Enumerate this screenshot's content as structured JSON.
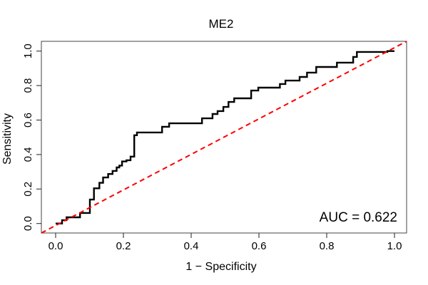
{
  "figure": {
    "background": "#ffffff"
  },
  "chart_data": {
    "type": "line",
    "subtype": "roc-step-curve",
    "title": "ME2",
    "xlabel": "1 − Specificity",
    "ylabel": "Sensitivity",
    "annotation": "AUC = 0.622",
    "auc_value": 0.622,
    "xlim": [
      0.0,
      1.0
    ],
    "ylim": [
      0.0,
      1.0
    ],
    "grid": false,
    "legend": "none",
    "x_ticks": [
      0.0,
      0.2,
      0.4,
      0.6,
      0.8,
      1.0
    ],
    "x_tick_labels": [
      "0.0",
      "0.2",
      "0.4",
      "0.6",
      "0.8",
      "1.0"
    ],
    "y_ticks": [
      0.0,
      0.2,
      0.4,
      0.6,
      0.8,
      1.0
    ],
    "y_tick_labels": [
      "0.0",
      "0.2",
      "0.4",
      "0.6",
      "0.8",
      "1.0"
    ],
    "colors": {
      "roc_curve": "#000000",
      "diagonal": "#ff0000",
      "box": "#555555",
      "tick": "#333333",
      "text": "#000000"
    },
    "series": [
      {
        "name": "ROC curve",
        "style": "solid-step",
        "color": "#000000",
        "points": [
          [
            0.0,
            0.0
          ],
          [
            0.019,
            0.0
          ],
          [
            0.019,
            0.019
          ],
          [
            0.032,
            0.019
          ],
          [
            0.032,
            0.036
          ],
          [
            0.072,
            0.036
          ],
          [
            0.072,
            0.061
          ],
          [
            0.101,
            0.061
          ],
          [
            0.101,
            0.139
          ],
          [
            0.113,
            0.139
          ],
          [
            0.113,
            0.204
          ],
          [
            0.129,
            0.204
          ],
          [
            0.129,
            0.236
          ],
          [
            0.14,
            0.236
          ],
          [
            0.14,
            0.267
          ],
          [
            0.155,
            0.267
          ],
          [
            0.155,
            0.287
          ],
          [
            0.168,
            0.287
          ],
          [
            0.168,
            0.305
          ],
          [
            0.18,
            0.305
          ],
          [
            0.18,
            0.325
          ],
          [
            0.188,
            0.325
          ],
          [
            0.188,
            0.336
          ],
          [
            0.196,
            0.336
          ],
          [
            0.196,
            0.36
          ],
          [
            0.209,
            0.36
          ],
          [
            0.209,
            0.367
          ],
          [
            0.221,
            0.367
          ],
          [
            0.221,
            0.388
          ],
          [
            0.232,
            0.388
          ],
          [
            0.232,
            0.512
          ],
          [
            0.24,
            0.512
          ],
          [
            0.24,
            0.528
          ],
          [
            0.314,
            0.528
          ],
          [
            0.314,
            0.561
          ],
          [
            0.335,
            0.561
          ],
          [
            0.335,
            0.581
          ],
          [
            0.432,
            0.581
          ],
          [
            0.432,
            0.61
          ],
          [
            0.463,
            0.61
          ],
          [
            0.463,
            0.635
          ],
          [
            0.478,
            0.635
          ],
          [
            0.478,
            0.652
          ],
          [
            0.495,
            0.652
          ],
          [
            0.495,
            0.676
          ],
          [
            0.51,
            0.676
          ],
          [
            0.51,
            0.705
          ],
          [
            0.527,
            0.705
          ],
          [
            0.527,
            0.726
          ],
          [
            0.577,
            0.726
          ],
          [
            0.577,
            0.771
          ],
          [
            0.598,
            0.771
          ],
          [
            0.598,
            0.788
          ],
          [
            0.662,
            0.788
          ],
          [
            0.662,
            0.809
          ],
          [
            0.678,
            0.809
          ],
          [
            0.678,
            0.829
          ],
          [
            0.72,
            0.829
          ],
          [
            0.72,
            0.85
          ],
          [
            0.742,
            0.85
          ],
          [
            0.742,
            0.875
          ],
          [
            0.769,
            0.875
          ],
          [
            0.769,
            0.908
          ],
          [
            0.83,
            0.908
          ],
          [
            0.83,
            0.933
          ],
          [
            0.878,
            0.933
          ],
          [
            0.878,
            0.966
          ],
          [
            0.889,
            0.966
          ],
          [
            0.889,
            0.995
          ],
          [
            0.979,
            0.995
          ],
          [
            0.979,
            1.0
          ],
          [
            1.0,
            1.0
          ]
        ]
      },
      {
        "name": "chance diagonal",
        "style": "dashed",
        "color": "#ff0000",
        "points": [
          [
            0.0,
            0.0
          ],
          [
            1.0,
            1.0
          ]
        ]
      }
    ]
  }
}
